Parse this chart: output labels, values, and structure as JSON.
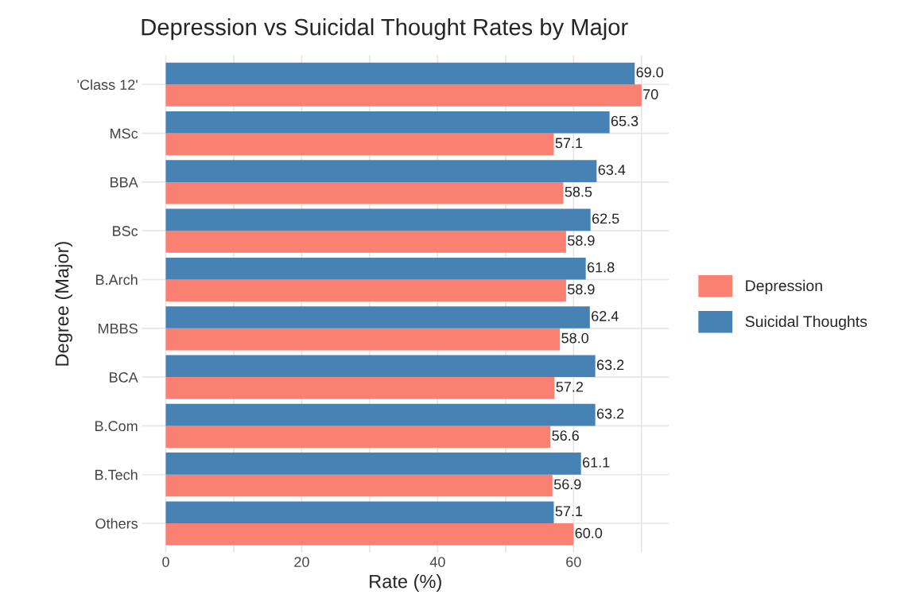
{
  "chart_data": {
    "type": "bar",
    "orientation": "horizontal",
    "title": "Depression vs Suicidal Thought Rates by Major",
    "xlabel": "Rate (%)",
    "ylabel": "Degree (Major)",
    "categories": [
      "'Class 12'",
      "MSc",
      "BBA",
      "BSc",
      "B.Arch",
      "MBBS",
      "BCA",
      "B.Com",
      "B.Tech",
      "Others"
    ],
    "series": [
      {
        "name": "Depression",
        "color": "#fa8072",
        "values": [
          70,
          57.1,
          58.5,
          58.9,
          58.9,
          58.0,
          57.2,
          56.6,
          56.9,
          60.0
        ],
        "value_labels": [
          "70",
          "57.1",
          "58.5",
          "58.9",
          "58.9",
          "58.0",
          "57.2",
          "56.6",
          "56.9",
          "60.0"
        ]
      },
      {
        "name": "Suicidal Thoughts",
        "color": "#4682b4",
        "values": [
          69.0,
          65.3,
          63.4,
          62.5,
          61.8,
          62.4,
          63.2,
          63.2,
          61.1,
          57.1
        ],
        "value_labels": [
          "69.0",
          "65.3",
          "63.4",
          "62.5",
          "61.8",
          "62.4",
          "63.2",
          "63.2",
          "61.1",
          "57.1"
        ]
      }
    ],
    "xlim": [
      -3.5,
      74
    ],
    "xticks": [
      0,
      {
        "value": 10,
        "label": null
      },
      20,
      {
        "value": 30,
        "label": null
      },
      40,
      {
        "value": 50,
        "label": null
      },
      60,
      {
        "value": 70,
        "label": null
      }
    ],
    "grid": true,
    "legend": "right"
  }
}
